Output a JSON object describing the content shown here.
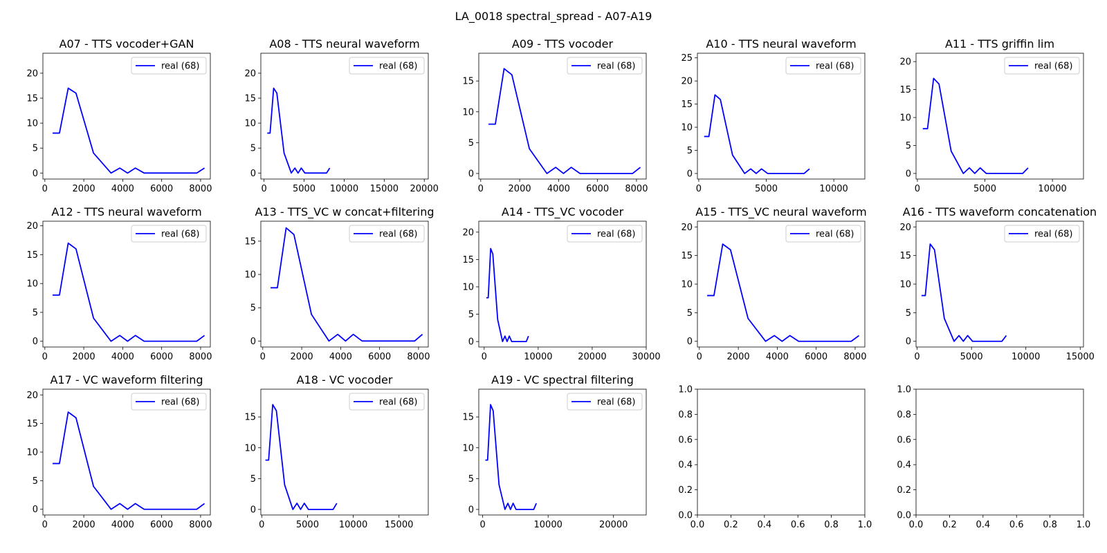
{
  "figure": {
    "title": "LA_0018 spectral_spread - A07-A19"
  },
  "chart_data": [
    {
      "type": "line",
      "title": "A07 - TTS vocoder+GAN",
      "xlim": [
        -100,
        8500
      ],
      "ylim": [
        -1.2,
        24
      ],
      "xticks": [
        0,
        2000,
        4000,
        6000,
        8000
      ],
      "yticks": [
        0,
        5,
        10,
        15,
        20
      ],
      "legend": "upper right",
      "series": [
        {
          "name": "real (68)",
          "color": "#0000ff",
          "x": [
            400,
            750,
            1200,
            1600,
            2500,
            3400,
            3850,
            4250,
            4650,
            5100,
            7800,
            8200
          ],
          "y": [
            8,
            8,
            17,
            16,
            4,
            0,
            1,
            0,
            1,
            0,
            0,
            1
          ]
        }
      ]
    },
    {
      "type": "line",
      "title": "A08 - TTS neural waveform",
      "xlim": [
        -400,
        20500
      ],
      "ylim": [
        -1.2,
        24
      ],
      "xticks": [
        0,
        5000,
        10000,
        15000,
        20000
      ],
      "yticks": [
        0,
        5,
        10,
        15,
        20
      ],
      "legend": "upper right",
      "series": [
        {
          "name": "real (68)",
          "color": "#0000ff",
          "x": [
            400,
            750,
            1200,
            1600,
            2500,
            3400,
            3850,
            4250,
            4650,
            5100,
            7800,
            8200
          ],
          "y": [
            8,
            8,
            17,
            16,
            4,
            0,
            1,
            0,
            1,
            0,
            0,
            1
          ]
        }
      ]
    },
    {
      "type": "line",
      "title": "A09 - TTS vocoder",
      "xlim": [
        -100,
        8500
      ],
      "ylim": [
        -0.9,
        19.5
      ],
      "xticks": [
        0,
        2000,
        4000,
        6000,
        8000
      ],
      "yticks": [
        0,
        5,
        10,
        15
      ],
      "legend": "upper right",
      "series": [
        {
          "name": "real (68)",
          "color": "#0000ff",
          "x": [
            400,
            750,
            1200,
            1600,
            2500,
            3400,
            3850,
            4250,
            4650,
            5100,
            7800,
            8200
          ],
          "y": [
            8,
            8,
            17,
            16,
            4,
            0,
            1,
            0,
            1,
            0,
            0,
            1
          ]
        }
      ]
    },
    {
      "type": "line",
      "title": "A10 - TTS neural waveform",
      "xlim": [
        -100,
        12300
      ],
      "ylim": [
        -1.2,
        26
      ],
      "xticks": [
        0,
        5000,
        10000
      ],
      "yticks": [
        0,
        5,
        10,
        15,
        20,
        25
      ],
      "legend": "upper right",
      "series": [
        {
          "name": "real (68)",
          "color": "#0000ff",
          "x": [
            400,
            750,
            1200,
            1600,
            2500,
            3400,
            3850,
            4250,
            4650,
            5100,
            7800,
            8200
          ],
          "y": [
            8,
            8,
            17,
            16,
            4,
            0,
            1,
            0,
            1,
            0,
            0,
            1
          ]
        }
      ]
    },
    {
      "type": "line",
      "title": "A11 - TTS griffin lim",
      "xlim": [
        -100,
        12300
      ],
      "ylim": [
        -1.0,
        21.5
      ],
      "xticks": [
        0,
        5000,
        10000
      ],
      "yticks": [
        0,
        5,
        10,
        15,
        20
      ],
      "legend": "upper right",
      "series": [
        {
          "name": "real (68)",
          "color": "#0000ff",
          "x": [
            400,
            750,
            1200,
            1600,
            2500,
            3400,
            3850,
            4250,
            4650,
            5100,
            7800,
            8200
          ],
          "y": [
            8,
            8,
            17,
            16,
            4,
            0,
            1,
            0,
            1,
            0,
            0,
            1
          ]
        }
      ]
    },
    {
      "type": "line",
      "title": "A12 - TTS neural waveform",
      "xlim": [
        -100,
        8500
      ],
      "ylim": [
        -1.0,
        20.8
      ],
      "xticks": [
        0,
        2000,
        4000,
        6000,
        8000
      ],
      "yticks": [
        0,
        5,
        10,
        15,
        20
      ],
      "legend": "upper right",
      "series": [
        {
          "name": "real (68)",
          "color": "#0000ff",
          "x": [
            400,
            750,
            1200,
            1600,
            2500,
            3400,
            3850,
            4250,
            4650,
            5100,
            7800,
            8200
          ],
          "y": [
            8,
            8,
            17,
            16,
            4,
            0,
            1,
            0,
            1,
            0,
            0,
            1
          ]
        }
      ]
    },
    {
      "type": "line",
      "title": "A13 - TTS_VC w concat+filtering",
      "xlim": [
        -100,
        8500
      ],
      "ylim": [
        -0.9,
        18.0
      ],
      "xticks": [
        0,
        2000,
        4000,
        6000,
        8000
      ],
      "yticks": [
        0,
        5,
        10,
        15
      ],
      "legend": "upper right",
      "series": [
        {
          "name": "real (68)",
          "color": "#0000ff",
          "x": [
            400,
            750,
            1200,
            1600,
            2500,
            3400,
            3850,
            4250,
            4650,
            5100,
            7800,
            8200
          ],
          "y": [
            8,
            8,
            17,
            16,
            4,
            0,
            1,
            0,
            1,
            0,
            0,
            1
          ]
        }
      ]
    },
    {
      "type": "line",
      "title": "A14 - TTS_VC vocoder",
      "xlim": [
        -1000,
        30000
      ],
      "ylim": [
        -1.0,
        22.0
      ],
      "xticks": [
        0,
        10000,
        20000,
        30000
      ],
      "yticks": [
        0,
        5,
        10,
        15,
        20
      ],
      "legend": "upper right",
      "series": [
        {
          "name": "real (68)",
          "color": "#0000ff",
          "x": [
            400,
            750,
            1200,
            1600,
            2500,
            3400,
            3850,
            4250,
            4650,
            5100,
            7800,
            8200
          ],
          "y": [
            8,
            8,
            17,
            16,
            4,
            0,
            1,
            0,
            1,
            0,
            0,
            1
          ]
        }
      ]
    },
    {
      "type": "line",
      "title": "A15 - TTS_VC neural waveform",
      "xlim": [
        -100,
        8500
      ],
      "ylim": [
        -1.0,
        21.0
      ],
      "xticks": [
        0,
        2000,
        4000,
        6000,
        8000
      ],
      "yticks": [
        0,
        5,
        10,
        15,
        20
      ],
      "legend": "upper right",
      "series": [
        {
          "name": "real (68)",
          "color": "#0000ff",
          "x": [
            400,
            750,
            1200,
            1600,
            2500,
            3400,
            3850,
            4250,
            4650,
            5100,
            7800,
            8200
          ],
          "y": [
            8,
            8,
            17,
            16,
            4,
            0,
            1,
            0,
            1,
            0,
            0,
            1
          ]
        }
      ]
    },
    {
      "type": "line",
      "title": "A16 - TTS waveform concatenation",
      "xlim": [
        -100,
        15300
      ],
      "ylim": [
        -1.0,
        21.0
      ],
      "xticks": [
        0,
        5000,
        10000,
        15000
      ],
      "yticks": [
        0,
        5,
        10,
        15,
        20
      ],
      "legend": "upper right",
      "series": [
        {
          "name": "real (68)",
          "color": "#0000ff",
          "x": [
            400,
            750,
            1200,
            1600,
            2500,
            3400,
            3850,
            4250,
            4650,
            5100,
            7800,
            8200
          ],
          "y": [
            8,
            8,
            17,
            16,
            4,
            0,
            1,
            0,
            1,
            0,
            0,
            1
          ]
        }
      ]
    },
    {
      "type": "line",
      "title": "A17 - VC waveform filtering",
      "xlim": [
        -100,
        8500
      ],
      "ylim": [
        -1.0,
        21.0
      ],
      "xticks": [
        0,
        2000,
        4000,
        6000,
        8000
      ],
      "yticks": [
        0,
        5,
        10,
        15,
        20
      ],
      "legend": "upper right",
      "series": [
        {
          "name": "real (68)",
          "color": "#0000ff",
          "x": [
            400,
            750,
            1200,
            1600,
            2500,
            3400,
            3850,
            4250,
            4650,
            5100,
            7800,
            8200
          ],
          "y": [
            8,
            8,
            17,
            16,
            4,
            0,
            1,
            0,
            1,
            0,
            0,
            1
          ]
        }
      ]
    },
    {
      "type": "line",
      "title": "A18 - VC vocoder",
      "xlim": [
        -100,
        18200
      ],
      "ylim": [
        -0.9,
        19.5
      ],
      "xticks": [
        0,
        5000,
        10000,
        15000
      ],
      "yticks": [
        0,
        5,
        10,
        15
      ],
      "legend": "upper right",
      "series": [
        {
          "name": "real (68)",
          "color": "#0000ff",
          "x": [
            400,
            750,
            1200,
            1600,
            2500,
            3400,
            3850,
            4250,
            4650,
            5100,
            7800,
            8200
          ],
          "y": [
            8,
            8,
            17,
            16,
            4,
            0,
            1,
            0,
            1,
            0,
            0,
            1
          ]
        }
      ]
    },
    {
      "type": "line",
      "title": "A19 - VC spectral filtering",
      "xlim": [
        -600,
        25000
      ],
      "ylim": [
        -0.9,
        19.5
      ],
      "xticks": [
        0,
        10000,
        20000
      ],
      "yticks": [
        0,
        5,
        10,
        15
      ],
      "legend": "upper right",
      "series": [
        {
          "name": "real (68)",
          "color": "#0000ff",
          "x": [
            400,
            750,
            1200,
            1600,
            2500,
            3400,
            3850,
            4250,
            4650,
            5100,
            7800,
            8200
          ],
          "y": [
            8,
            8,
            17,
            16,
            4,
            0,
            1,
            0,
            1,
            0,
            0,
            1
          ]
        }
      ]
    },
    {
      "type": "line",
      "title": "",
      "xlim": [
        0,
        1
      ],
      "ylim": [
        0,
        1
      ],
      "xticks": [
        0.0,
        0.2,
        0.4,
        0.6,
        0.8,
        1.0
      ],
      "yticks": [
        0.0,
        0.2,
        0.4,
        0.6,
        0.8,
        1.0
      ],
      "series": []
    },
    {
      "type": "line",
      "title": "",
      "xlim": [
        0,
        1
      ],
      "ylim": [
        0,
        1
      ],
      "xticks": [
        0.0,
        0.2,
        0.4,
        0.6,
        0.8,
        1.0
      ],
      "yticks": [
        0.0,
        0.2,
        0.4,
        0.6,
        0.8,
        1.0
      ],
      "series": []
    }
  ]
}
